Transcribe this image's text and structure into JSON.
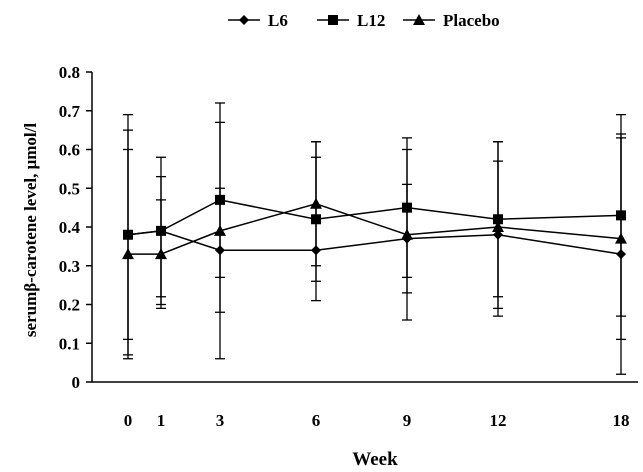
{
  "chart_data": {
    "type": "line",
    "xlabel": "Week",
    "ylabel": "serumβ-carotene level, μmol/l",
    "categories": [
      "0",
      "1",
      "3",
      "6",
      "9",
      "12",
      "18"
    ],
    "ylim": [
      0,
      0.8
    ],
    "yticks": [
      "0",
      "0.1",
      "0.2",
      "0.3",
      "0.4",
      "0.5",
      "0.6",
      "0.7",
      "0.8"
    ],
    "grid": false,
    "legend_position": "top",
    "series": [
      {
        "name": "L6",
        "marker": "diamond",
        "values": [
          0.38,
          0.39,
          0.34,
          0.34,
          0.37,
          0.38,
          0.33
        ],
        "error_low": [
          0.11,
          0.2,
          0.06,
          0.21,
          0.16,
          0.17,
          0.02
        ],
        "error_high": [
          0.65,
          0.58,
          0.72,
          0.62,
          0.6,
          0.62,
          0.64
        ]
      },
      {
        "name": "L12",
        "marker": "square",
        "values": [
          0.38,
          0.39,
          0.47,
          0.42,
          0.45,
          0.42,
          0.43
        ],
        "error_low": [
          0.07,
          0.19,
          0.27,
          0.26,
          0.27,
          0.22,
          0.17
        ],
        "error_high": [
          0.69,
          0.53,
          0.67,
          0.58,
          0.63,
          0.62,
          0.69
        ]
      },
      {
        "name": "Placebo",
        "marker": "triangle",
        "values": [
          0.33,
          0.33,
          0.39,
          0.46,
          0.38,
          0.4,
          0.37
        ],
        "error_low": [
          0.06,
          0.22,
          0.18,
          0.3,
          0.23,
          0.19,
          0.11
        ],
        "error_high": [
          0.6,
          0.47,
          0.5,
          0.62,
          0.51,
          0.57,
          0.63
        ]
      }
    ]
  }
}
